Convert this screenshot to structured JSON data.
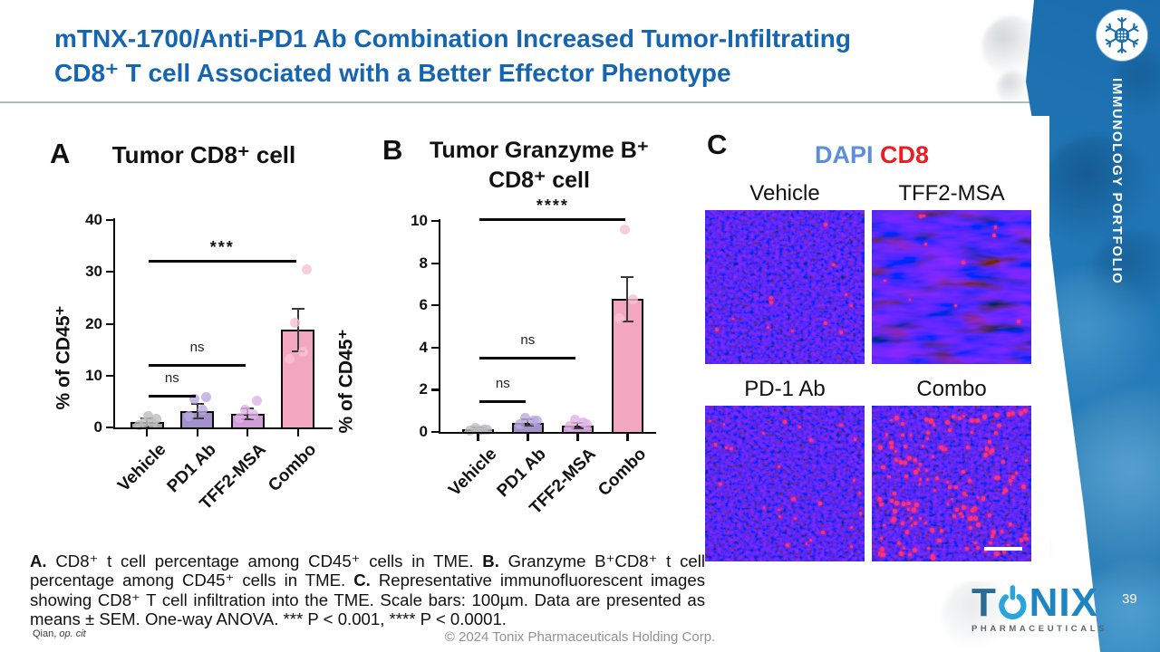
{
  "slide": {
    "title_line1": "mTNX-1700/Anti-PD1 Ab Combination Increased Tumor-Infiltrating",
    "title_line2": "CD8⁺ T cell Associated with a Better Effector Phenotype"
  },
  "colors": {
    "title_blue": "#1565b0",
    "band_blue": "#2379b8",
    "dapi_blue": "#5b8fd8",
    "cd8_red": "#ec1c24",
    "tonix_blue": "#1f84c2"
  },
  "sidebar": {
    "portfolio_label": "IMMUNOLOGY PORTFOLIO",
    "page_number": "39"
  },
  "chart_data": [
    {
      "id": "tumor-cd8",
      "type": "bar",
      "panel_label": "A",
      "title": "Tumor CD8⁺ cell",
      "ylabel": "% of CD45⁺",
      "xlabel": "",
      "ylim": [
        0,
        40
      ],
      "yticks": [
        0,
        10,
        20,
        30,
        40
      ],
      "grid": false,
      "categories": [
        "Vehicle",
        "PD1 Ab",
        "TFF2-MSA",
        "Combo"
      ],
      "values": [
        1.0,
        3.2,
        2.6,
        18.8
      ],
      "errors": [
        0.8,
        1.4,
        1.0,
        4.1
      ],
      "points": [
        [
          0.4,
          0.7,
          1.0,
          1.6,
          2.2
        ],
        [
          2.2,
          3.4,
          5.5,
          5.9
        ],
        [
          1.9,
          2.6,
          3.4,
          5.1
        ],
        [
          13.2,
          14.6,
          20.2,
          30.4
        ]
      ],
      "bar_colors": [
        "#a7a7a9",
        "#a291cb",
        "#cf9ed8",
        "#f3a6bf"
      ],
      "point_colors": [
        "#bdbdbf",
        "#b9a9dd",
        "#dfb3e4",
        "#f8c2d3"
      ],
      "significance": [
        {
          "label": "***",
          "from": 0,
          "to": 3,
          "y": 32
        },
        {
          "label": "ns",
          "from": 0,
          "to": 2,
          "y": 12
        },
        {
          "label": "ns",
          "from": 0,
          "to": 1,
          "y": 6.1
        }
      ]
    },
    {
      "id": "tumor-granzymeb-cd8",
      "type": "bar",
      "panel_label": "B",
      "title": "Tumor Granzyme B⁺\nCD8⁺ cell",
      "ylabel": "% of CD45⁺",
      "xlabel": "",
      "ylim": [
        0,
        10
      ],
      "yticks": [
        0,
        2,
        4,
        6,
        8,
        10
      ],
      "grid": false,
      "categories": [
        "Vehicle",
        "PD1 Ab",
        "TFF2-MSA",
        "Combo"
      ],
      "values": [
        0.12,
        0.45,
        0.3,
        6.3
      ],
      "errors": [
        0.08,
        0.15,
        0.12,
        1.05
      ],
      "points": [
        [
          0.05,
          0.1,
          0.18,
          0.12,
          0.07
        ],
        [
          0.38,
          0.52,
          0.65,
          0.55
        ],
        [
          0.28,
          0.45,
          0.6,
          0.35
        ],
        [
          5.4,
          6.3,
          9.6
        ]
      ],
      "bar_colors": [
        "#a7a7a9",
        "#a291cb",
        "#cf9ed8",
        "#f3a6bf"
      ],
      "point_colors": [
        "#bdbdbf",
        "#b9a9dd",
        "#dfb3e4",
        "#f8c2d3"
      ],
      "significance": [
        {
          "label": "****",
          "from": 0,
          "to": 3,
          "y": 10.05
        },
        {
          "label": "ns",
          "from": 0,
          "to": 2,
          "y": 3.5
        },
        {
          "label": "ns",
          "from": 0,
          "to": 1,
          "y": 1.45
        }
      ]
    }
  ],
  "panel_c": {
    "label": "C",
    "title_dapi": "DAPI",
    "title_cd8": "CD8",
    "images": [
      {
        "label": "Vehicle",
        "red_dots": 12,
        "texture": "fine",
        "seed": 7
      },
      {
        "label": "TFF2-MSA",
        "red_dots": 10,
        "texture": "swirl",
        "seed": 11
      },
      {
        "label": "PD-1 Ab",
        "red_dots": 30,
        "texture": "fine",
        "seed": 23
      },
      {
        "label": "Combo",
        "red_dots": 150,
        "texture": "fine",
        "seed": 41,
        "scale_bar": true
      }
    ]
  },
  "caption": {
    "segments": [
      {
        "t": "A.",
        "b": 1
      },
      {
        "t": " CD8⁺ t cell percentage among CD45⁺ cells in TME. ",
        "b": 0
      },
      {
        "t": "B.",
        "b": 1
      },
      {
        "t": " Granzyme B⁺CD8⁺ t cell percentage among CD45⁺ cells in TME. ",
        "b": 0
      },
      {
        "t": "C.",
        "b": 1
      },
      {
        "t": " Representative immunofluorescent images showing CD8⁺ T cell infiltration into the TME. Scale bars: 100µm. Data are presented as means ± SEM. One-way ANOVA. *** P < 0.001, **** P < 0.0001.",
        "b": 0
      }
    ]
  },
  "footer": {
    "citation_prefix": "Qian, ",
    "citation_italic": "op. cit",
    "copyright": "© 2024 Tonix Pharmaceuticals Holding Corp."
  },
  "brand": {
    "t": "T",
    "nix": "NIX",
    "sub": "PHARMACEUTICALS"
  }
}
